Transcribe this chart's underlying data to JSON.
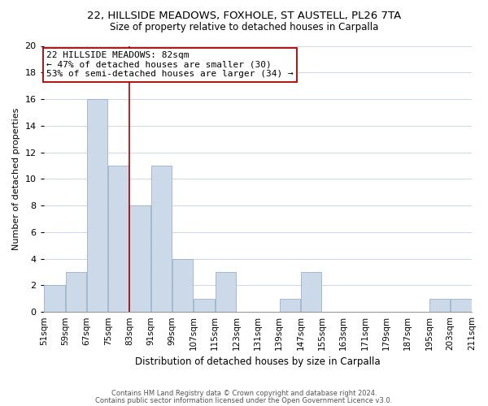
{
  "title": "22, HILLSIDE MEADOWS, FOXHOLE, ST AUSTELL, PL26 7TA",
  "subtitle": "Size of property relative to detached houses in Carpalla",
  "xlabel": "Distribution of detached houses by size in Carpalla",
  "ylabel": "Number of detached properties",
  "bin_edges": [
    51,
    59,
    67,
    75,
    83,
    91,
    99,
    107,
    115,
    123,
    131,
    139,
    147,
    155,
    163,
    171,
    179,
    187,
    195,
    203,
    211
  ],
  "bar_heights": [
    2,
    3,
    16,
    11,
    8,
    11,
    4,
    1,
    3,
    0,
    0,
    1,
    3,
    0,
    0,
    0,
    0,
    0,
    1,
    1
  ],
  "bar_color": "#ccd9e8",
  "bar_edgecolor": "#99b0c8",
  "vline_x": 83,
  "vline_color": "#aa0000",
  "ylim": [
    0,
    20
  ],
  "yticks": [
    0,
    2,
    4,
    6,
    8,
    10,
    12,
    14,
    16,
    18,
    20
  ],
  "tick_labels": [
    "51sqm",
    "59sqm",
    "67sqm",
    "75sqm",
    "83sqm",
    "91sqm",
    "99sqm",
    "107sqm",
    "115sqm",
    "123sqm",
    "131sqm",
    "139sqm",
    "147sqm",
    "155sqm",
    "163sqm",
    "171sqm",
    "179sqm",
    "187sqm",
    "195sqm",
    "203sqm",
    "211sqm"
  ],
  "annotation_title": "22 HILLSIDE MEADOWS: 82sqm",
  "annotation_line1": "← 47% of detached houses are smaller (30)",
  "annotation_line2": "53% of semi-detached houses are larger (34) →",
  "annotation_box_color": "#ffffff",
  "annotation_box_edgecolor": "#aa0000",
  "footer1": "Contains HM Land Registry data © Crown copyright and database right 2024.",
  "footer2": "Contains public sector information licensed under the Open Government Licence v3.0.",
  "background_color": "#ffffff",
  "grid_color": "#ccd8e8"
}
